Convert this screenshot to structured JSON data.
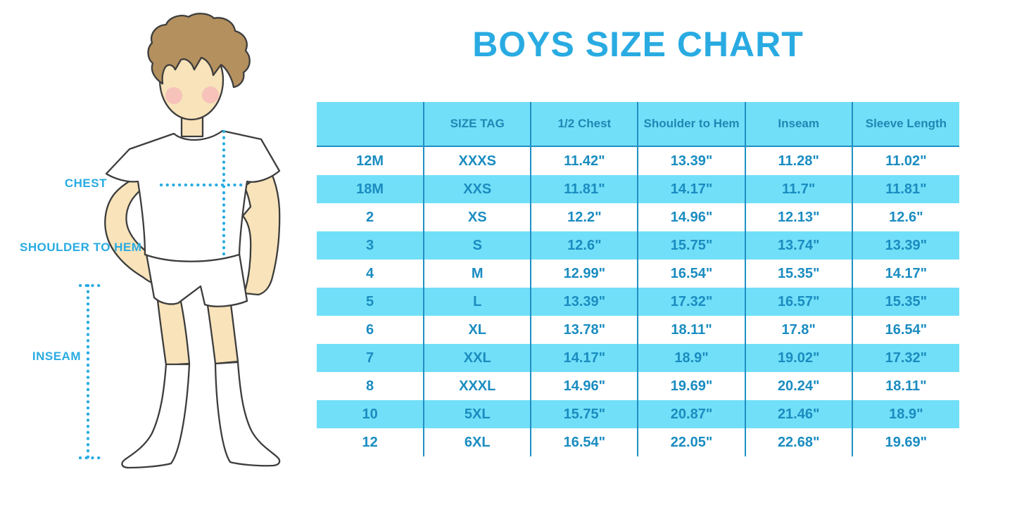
{
  "title": "BOYS SIZE CHART",
  "figure": {
    "chest_label": "CHEST",
    "shoulder_label": "SHOULDER TO HEM",
    "inseam_label": "INSEAM"
  },
  "colors": {
    "accent": "#29ABE2",
    "table_fill": "#72DFF8",
    "table_text": "#1A8CC0",
    "header_text": "#1F87B4",
    "divider": "#1F8FC4",
    "skin": "#F8E3BA",
    "hair": "#B4905E",
    "outline": "#3D3D3D",
    "cheek": "#F4A7B9"
  },
  "chart_data": {
    "type": "table",
    "title": "BOYS SIZE CHART",
    "columns": [
      "",
      "SIZE TAG",
      "1/2 Chest",
      "Shoulder to Hem",
      "Inseam",
      "Sleeve Length"
    ],
    "rows": [
      [
        "12M",
        "XXXS",
        "11.42\"",
        "13.39\"",
        "11.28\"",
        "11.02\""
      ],
      [
        "18M",
        "XXS",
        "11.81\"",
        "14.17\"",
        "11.7\"",
        "11.81\""
      ],
      [
        "2",
        "XS",
        "12.2\"",
        "14.96\"",
        "12.13\"",
        "12.6\""
      ],
      [
        "3",
        "S",
        "12.6\"",
        "15.75\"",
        "13.74\"",
        "13.39\""
      ],
      [
        "4",
        "M",
        "12.99\"",
        "16.54\"",
        "15.35\"",
        "14.17\""
      ],
      [
        "5",
        "L",
        "13.39\"",
        "17.32\"",
        "16.57\"",
        "15.35\""
      ],
      [
        "6",
        "XL",
        "13.78\"",
        "18.11\"",
        "17.8\"",
        "16.54\""
      ],
      [
        "7",
        "XXL",
        "14.17\"",
        "18.9\"",
        "19.02\"",
        "17.32\""
      ],
      [
        "8",
        "XXXL",
        "14.96\"",
        "19.69\"",
        "20.24\"",
        "18.11\""
      ],
      [
        "10",
        "5XL",
        "15.75\"",
        "20.87\"",
        "21.46\"",
        "18.9\""
      ],
      [
        "12",
        "6XL",
        "16.54\"",
        "22.05\"",
        "22.68\"",
        "19.69\""
      ]
    ]
  }
}
